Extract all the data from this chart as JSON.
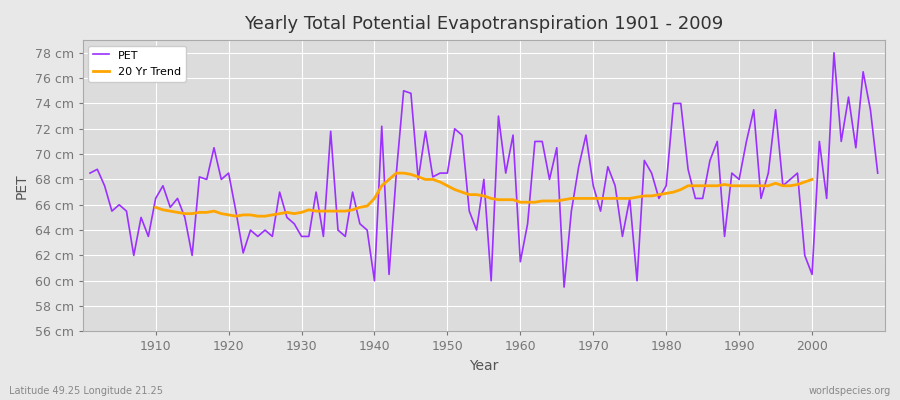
{
  "title": "Yearly Total Potential Evapotranspiration 1901 - 2009",
  "xlabel": "Year",
  "ylabel": "PET",
  "subtitle_left": "Latitude 49.25 Longitude 21.25",
  "subtitle_right": "worldspecies.org",
  "ylim": [
    56,
    79
  ],
  "yticks": [
    56,
    58,
    60,
    62,
    64,
    66,
    68,
    70,
    72,
    74,
    76,
    78
  ],
  "pet_color": "#9B30FF",
  "trend_color": "#FFA500",
  "bg_color": "#E8E8E8",
  "plot_bg_color": "#DCDCDC",
  "grid_color": "#FFFFFF",
  "years": [
    1901,
    1902,
    1903,
    1904,
    1905,
    1906,
    1907,
    1908,
    1909,
    1910,
    1911,
    1912,
    1913,
    1914,
    1915,
    1916,
    1917,
    1918,
    1919,
    1920,
    1921,
    1922,
    1923,
    1924,
    1925,
    1926,
    1927,
    1928,
    1929,
    1930,
    1931,
    1932,
    1933,
    1934,
    1935,
    1936,
    1937,
    1938,
    1939,
    1940,
    1941,
    1942,
    1943,
    1944,
    1945,
    1946,
    1947,
    1948,
    1949,
    1950,
    1951,
    1952,
    1953,
    1954,
    1955,
    1956,
    1957,
    1958,
    1959,
    1960,
    1961,
    1962,
    1963,
    1964,
    1965,
    1966,
    1967,
    1968,
    1969,
    1970,
    1971,
    1972,
    1973,
    1974,
    1975,
    1976,
    1977,
    1978,
    1979,
    1980,
    1981,
    1982,
    1983,
    1984,
    1985,
    1986,
    1987,
    1988,
    1989,
    1990,
    1991,
    1992,
    1993,
    1994,
    1995,
    1996,
    1997,
    1998,
    1999,
    2000,
    2001,
    2002,
    2003,
    2004,
    2005,
    2006,
    2007,
    2008,
    2009
  ],
  "pet_values": [
    68.5,
    68.8,
    67.5,
    65.5,
    66.0,
    65.5,
    62.0,
    65.0,
    63.5,
    66.5,
    67.5,
    65.8,
    66.5,
    65.0,
    62.0,
    68.2,
    68.0,
    70.5,
    68.0,
    68.5,
    65.5,
    62.2,
    64.0,
    63.5,
    64.0,
    63.5,
    67.0,
    65.0,
    64.5,
    63.5,
    63.5,
    67.0,
    63.5,
    71.8,
    64.0,
    63.5,
    67.0,
    64.5,
    64.0,
    60.0,
    72.2,
    60.5,
    68.5,
    75.0,
    74.8,
    68.0,
    71.8,
    68.2,
    68.5,
    68.5,
    72.0,
    71.5,
    65.5,
    64.0,
    68.0,
    60.0,
    73.0,
    68.5,
    71.5,
    61.5,
    64.5,
    71.0,
    71.0,
    68.0,
    70.5,
    59.5,
    65.5,
    69.0,
    71.5,
    67.5,
    65.5,
    69.0,
    67.5,
    63.5,
    66.5,
    60.0,
    69.5,
    68.5,
    66.5,
    67.5,
    74.0,
    74.0,
    68.8,
    66.5,
    66.5,
    69.5,
    71.0,
    63.5,
    68.5,
    68.0,
    71.0,
    73.5,
    66.5,
    68.5,
    73.5,
    67.5,
    68.0,
    68.5,
    62.0,
    60.5,
    71.0,
    66.5,
    78.0,
    71.0,
    74.5,
    70.5,
    76.5,
    73.5,
    68.5
  ],
  "trend_years": [
    1910,
    1911,
    1912,
    1913,
    1914,
    1915,
    1916,
    1917,
    1918,
    1919,
    1920,
    1921,
    1922,
    1923,
    1924,
    1925,
    1926,
    1927,
    1928,
    1929,
    1930,
    1931,
    1932,
    1933,
    1934,
    1935,
    1936,
    1937,
    1938,
    1939,
    1940,
    1941,
    1942,
    1943,
    1944,
    1945,
    1946,
    1947,
    1948,
    1949,
    1950,
    1951,
    1952,
    1953,
    1954,
    1955,
    1956,
    1957,
    1958,
    1959,
    1960,
    1961,
    1962,
    1963,
    1964,
    1965,
    1966,
    1967,
    1968,
    1969,
    1970,
    1971,
    1972,
    1973,
    1974,
    1975,
    1976,
    1977,
    1978,
    1979,
    1980,
    1981,
    1982,
    1983,
    1984,
    1985,
    1986,
    1987,
    1988,
    1989,
    1990,
    1991,
    1992,
    1993,
    1994,
    1995,
    1996,
    1997,
    1998,
    1999,
    2000
  ],
  "trend_values": [
    65.8,
    65.6,
    65.5,
    65.4,
    65.3,
    65.3,
    65.4,
    65.4,
    65.5,
    65.3,
    65.2,
    65.1,
    65.2,
    65.2,
    65.1,
    65.1,
    65.2,
    65.3,
    65.4,
    65.3,
    65.4,
    65.6,
    65.5,
    65.5,
    65.5,
    65.5,
    65.5,
    65.6,
    65.8,
    65.9,
    66.5,
    67.5,
    68.0,
    68.5,
    68.5,
    68.4,
    68.2,
    68.0,
    68.0,
    67.8,
    67.5,
    67.2,
    67.0,
    66.8,
    66.8,
    66.7,
    66.5,
    66.4,
    66.4,
    66.4,
    66.2,
    66.2,
    66.2,
    66.3,
    66.3,
    66.3,
    66.4,
    66.5,
    66.5,
    66.5,
    66.5,
    66.5,
    66.5,
    66.5,
    66.5,
    66.5,
    66.6,
    66.7,
    66.7,
    66.8,
    66.9,
    67.0,
    67.2,
    67.5,
    67.5,
    67.5,
    67.5,
    67.5,
    67.6,
    67.5,
    67.5,
    67.5,
    67.5,
    67.5,
    67.5,
    67.7,
    67.5,
    67.5,
    67.6,
    67.8,
    68.0
  ]
}
